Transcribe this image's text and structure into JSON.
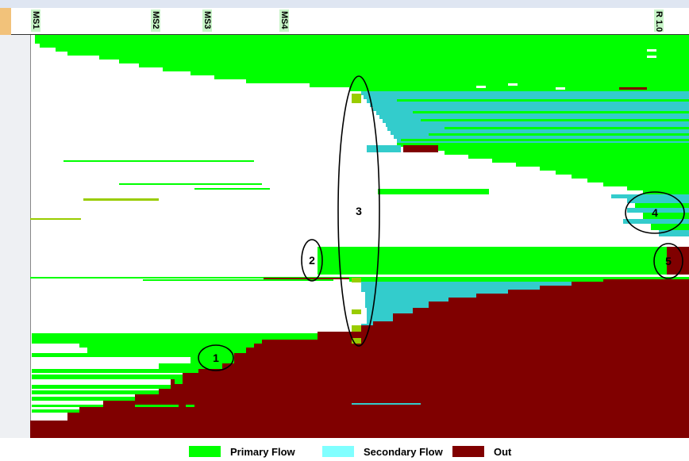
{
  "chart_data": {
    "type": "heatmap",
    "title": "",
    "xlabel": "",
    "ylabel": "",
    "milestones": [
      "MS1",
      "MS2",
      "MS3",
      "MS4",
      "R 1.0"
    ],
    "series": [
      {
        "name": "Primary Flow",
        "color": "#00ff00"
      },
      {
        "name": "Secondary Flow",
        "color": "#33cccc"
      },
      {
        "name": "Out",
        "color": "#800000"
      }
    ],
    "transition_color": "#99cc00",
    "annotations": [
      "1",
      "2",
      "3",
      "4",
      "5"
    ],
    "legend_position": "bottom-center"
  },
  "legend": {
    "items": [
      {
        "label": "Primary Flow",
        "color": "#00ff00"
      },
      {
        "label": "Secondary Flow",
        "color": "#80ffff"
      },
      {
        "label": "Out",
        "color": "#800000"
      }
    ]
  }
}
